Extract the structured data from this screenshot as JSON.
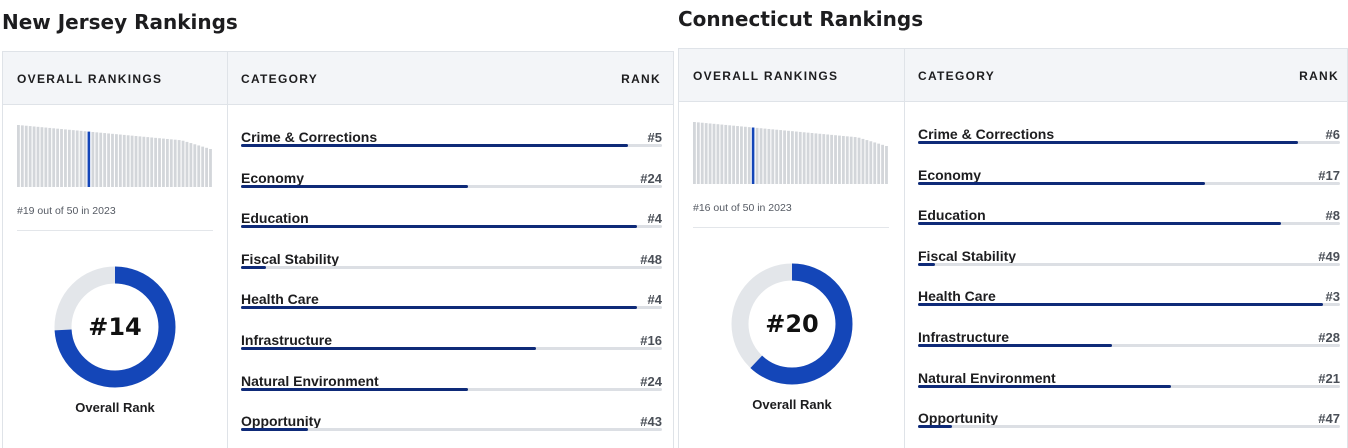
{
  "colors": {
    "bar_fill": "#0e2a78",
    "bar_track": "#dcdfe4",
    "donut_fill": "#1446b8",
    "donut_track": "#e3e6ea",
    "mini_bar": "#d3d6da",
    "mini_highlight": "#1446b8",
    "header_bg": "#f3f5f8"
  },
  "panels": [
    {
      "title": "New Jersey Rankings",
      "overall_header": "OVERALL RANKINGS",
      "category_header": "CATEGORY",
      "rank_header": "RANK",
      "mini_chart": {
        "highlight_rank": 19,
        "total": 50
      },
      "caption": "#19 out of 50 in 2023",
      "overall_rank": "#14",
      "overall_rank_value": 14,
      "donut_label": "Overall Rank",
      "categories": [
        {
          "name": "Crime & Corrections",
          "rank": "#5",
          "rank_value": 5
        },
        {
          "name": "Economy",
          "rank": "#24",
          "rank_value": 24
        },
        {
          "name": "Education",
          "rank": "#4",
          "rank_value": 4
        },
        {
          "name": "Fiscal Stability",
          "rank": "#48",
          "rank_value": 48
        },
        {
          "name": "Health Care",
          "rank": "#4",
          "rank_value": 4
        },
        {
          "name": "Infrastructure",
          "rank": "#16",
          "rank_value": 16
        },
        {
          "name": "Natural Environment",
          "rank": "#24",
          "rank_value": 24
        },
        {
          "name": "Opportunity",
          "rank": "#43",
          "rank_value": 43
        }
      ]
    },
    {
      "title": "Connecticut Rankings",
      "overall_header": "OVERALL RANKINGS",
      "category_header": "CATEGORY",
      "rank_header": "RANK",
      "mini_chart": {
        "highlight_rank": 16,
        "total": 50
      },
      "caption": "#16 out of 50 in 2023",
      "overall_rank": "#20",
      "overall_rank_value": 20,
      "donut_label": "Overall Rank",
      "categories": [
        {
          "name": "Crime & Corrections",
          "rank": "#6",
          "rank_value": 6
        },
        {
          "name": "Economy",
          "rank": "#17",
          "rank_value": 17
        },
        {
          "name": "Education",
          "rank": "#8",
          "rank_value": 8
        },
        {
          "name": "Fiscal Stability",
          "rank": "#49",
          "rank_value": 49
        },
        {
          "name": "Health Care",
          "rank": "#3",
          "rank_value": 3
        },
        {
          "name": "Infrastructure",
          "rank": "#28",
          "rank_value": 28
        },
        {
          "name": "Natural Environment",
          "rank": "#21",
          "rank_value": 21
        },
        {
          "name": "Opportunity",
          "rank": "#47",
          "rank_value": 47
        }
      ]
    }
  ]
}
